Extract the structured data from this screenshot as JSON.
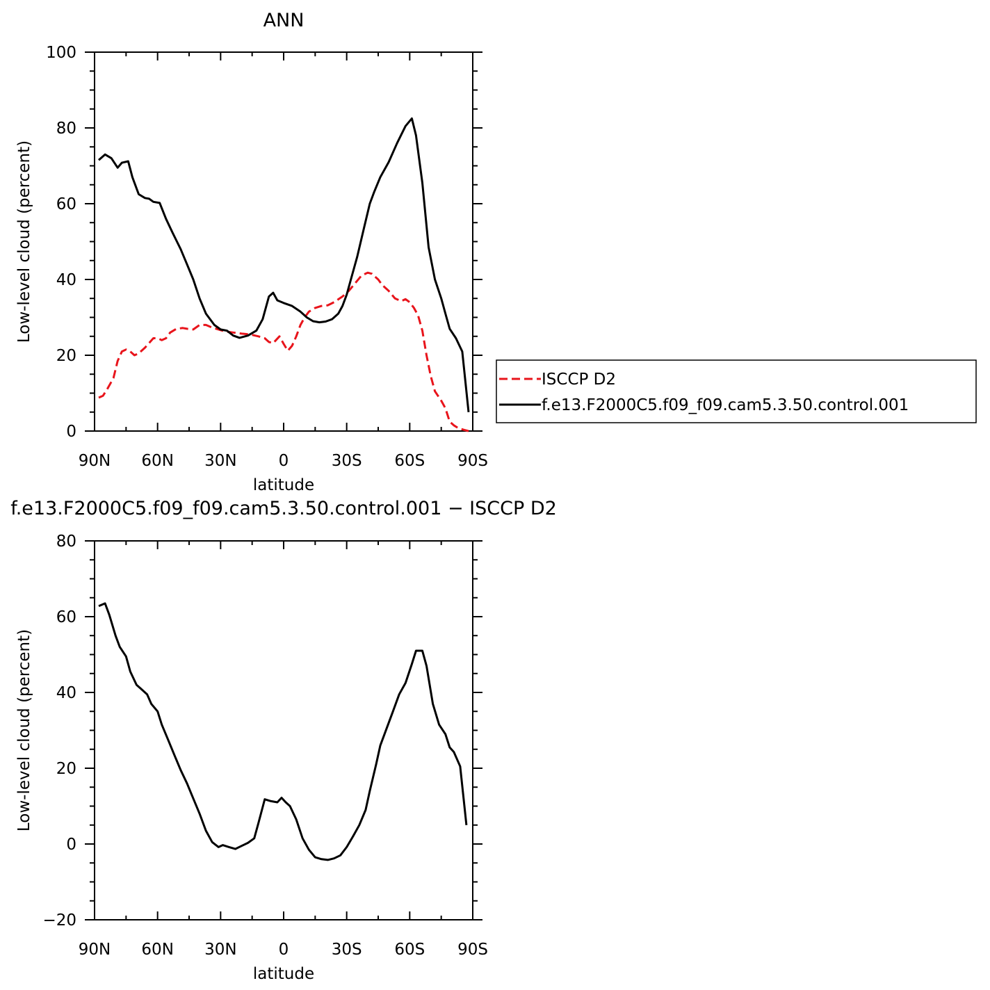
{
  "chart_data": [
    {
      "type": "line",
      "title": "ANN",
      "xlabel": "latitude",
      "ylabel": "Low-level cloud (percent)",
      "xlim": [
        90,
        -90
      ],
      "ylim": [
        0,
        100
      ],
      "x_ticks": [
        90,
        60,
        30,
        0,
        -30,
        -60,
        -90
      ],
      "x_tick_labels": [
        "90N",
        "60N",
        "30N",
        "0",
        "30S",
        "60S",
        "90S"
      ],
      "y_ticks": [
        0,
        20,
        40,
        60,
        80,
        100
      ],
      "y_tick_labels": [
        "0",
        "20",
        "40",
        "60",
        "80",
        "100"
      ],
      "grid": false,
      "legend_position": "right",
      "series": [
        {
          "name": "ISCCP D2",
          "color": "#e8141b",
          "dash": "dashed",
          "points": [
            [
              88,
              8.8
            ],
            [
              86,
              9.3
            ],
            [
              84,
              11
            ],
            [
              81,
              14
            ],
            [
              79,
              18.5
            ],
            [
              77,
              21
            ],
            [
              75,
              21.5
            ],
            [
              73,
              21
            ],
            [
              71,
              20
            ],
            [
              69,
              20.5
            ],
            [
              66,
              22
            ],
            [
              62,
              24.5
            ],
            [
              60,
              24.5
            ],
            [
              58,
              24
            ],
            [
              56,
              24.5
            ],
            [
              54,
              26
            ],
            [
              51,
              27
            ],
            [
              48,
              27.2
            ],
            [
              46,
              27
            ],
            [
              43,
              26.8
            ],
            [
              40,
              28
            ],
            [
              37,
              28
            ],
            [
              34,
              27.3
            ],
            [
              31,
              26.8
            ],
            [
              28,
              26.3
            ],
            [
              24,
              26
            ],
            [
              20,
              25.7
            ],
            [
              16,
              25.5
            ],
            [
              12,
              25
            ],
            [
              9,
              24.5
            ],
            [
              7,
              23.5
            ],
            [
              5,
              23.2
            ],
            [
              2,
              25
            ],
            [
              0,
              23
            ],
            [
              -2,
              21.2
            ],
            [
              -4,
              22.5
            ],
            [
              -6,
              25
            ],
            [
              -8,
              28
            ],
            [
              -10,
              30
            ],
            [
              -12,
              31.5
            ],
            [
              -15,
              32.5
            ],
            [
              -18,
              33
            ],
            [
              -21,
              33.2
            ],
            [
              -24,
              34
            ],
            [
              -28,
              35.5
            ],
            [
              -31,
              37
            ],
            [
              -34,
              39
            ],
            [
              -37,
              41
            ],
            [
              -40,
              41.8
            ],
            [
              -42,
              41.5
            ],
            [
              -45,
              40
            ],
            [
              -47,
              38.5
            ],
            [
              -50,
              37
            ],
            [
              -53,
              35
            ],
            [
              -56,
              34.3
            ],
            [
              -58,
              34.8
            ],
            [
              -60,
              34
            ],
            [
              -62,
              32.5
            ],
            [
              -64,
              30.5
            ],
            [
              -66,
              26.5
            ],
            [
              -68,
              20
            ],
            [
              -70,
              14.5
            ],
            [
              -72,
              10.5
            ],
            [
              -75,
              8
            ],
            [
              -77,
              6
            ],
            [
              -79,
              2.5
            ],
            [
              -81,
              1.5
            ],
            [
              -83,
              0.8
            ],
            [
              -86,
              0.3
            ],
            [
              -88,
              0
            ]
          ]
        },
        {
          "name": "f.e13.F2000C5.f09_f09.cam5.3.50.control.001",
          "color": "#000000",
          "dash": "solid",
          "points": [
            [
              88,
              71.5
            ],
            [
              85,
              73
            ],
            [
              82,
              72
            ],
            [
              79,
              69.5
            ],
            [
              77,
              70.8
            ],
            [
              74,
              71.2
            ],
            [
              72,
              67
            ],
            [
              69,
              62.5
            ],
            [
              66,
              61.5
            ],
            [
              64,
              61.3
            ],
            [
              62,
              60.5
            ],
            [
              59,
              60.2
            ],
            [
              56,
              56
            ],
            [
              53,
              52.5
            ],
            [
              49,
              48
            ],
            [
              46,
              44
            ],
            [
              43,
              40
            ],
            [
              40,
              35
            ],
            [
              37,
              31
            ],
            [
              33,
              28
            ],
            [
              30,
              26.8
            ],
            [
              27,
              26.5
            ],
            [
              24,
              25.2
            ],
            [
              21,
              24.6
            ],
            [
              17,
              25.2
            ],
            [
              13,
              26.5
            ],
            [
              10,
              29.5
            ],
            [
              7,
              35.5
            ],
            [
              5,
              36.5
            ],
            [
              3,
              34.5
            ],
            [
              0,
              33.8
            ],
            [
              -4,
              33
            ],
            [
              -8,
              31.5
            ],
            [
              -11,
              30
            ],
            [
              -14,
              29
            ],
            [
              -17,
              28.7
            ],
            [
              -20,
              28.9
            ],
            [
              -23,
              29.5
            ],
            [
              -26,
              31
            ],
            [
              -28,
              33
            ],
            [
              -30,
              36
            ],
            [
              -32,
              40
            ],
            [
              -35,
              46
            ],
            [
              -38,
              53
            ],
            [
              -41,
              60
            ],
            [
              -43,
              63
            ],
            [
              -46,
              67
            ],
            [
              -50,
              71
            ],
            [
              -54,
              76
            ],
            [
              -58,
              80.5
            ],
            [
              -61,
              82.5
            ],
            [
              -63,
              78
            ],
            [
              -66,
              65.5
            ],
            [
              -69,
              48.5
            ],
            [
              -72,
              40
            ],
            [
              -75,
              35
            ],
            [
              -77,
              31
            ],
            [
              -79,
              27
            ],
            [
              -82,
              24.5
            ],
            [
              -85,
              21
            ],
            [
              -88,
              5
            ]
          ]
        }
      ]
    },
    {
      "type": "line",
      "title": "f.e13.F2000C5.f09_f09.cam5.3.50.control.001 − ISCCP D2",
      "xlabel": "latitude",
      "ylabel": "Low-level cloud (percent)",
      "xlim": [
        90,
        -90
      ],
      "ylim": [
        -20,
        80
      ],
      "x_ticks": [
        90,
        60,
        30,
        0,
        -30,
        -60,
        -90
      ],
      "x_tick_labels": [
        "90N",
        "60N",
        "30N",
        "0",
        "30S",
        "60S",
        "90S"
      ],
      "y_ticks": [
        -20,
        0,
        20,
        40,
        60,
        80
      ],
      "y_tick_labels": [
        "−20",
        "0",
        "20",
        "40",
        "60",
        "80"
      ],
      "grid": false,
      "series": [
        {
          "color": "#000000",
          "dash": "solid",
          "points": [
            [
              88,
              62.8
            ],
            [
              85,
              63.5
            ],
            [
              83,
              60.5
            ],
            [
              80,
              55
            ],
            [
              78,
              52
            ],
            [
              75,
              49.5
            ],
            [
              73,
              45.5
            ],
            [
              70,
              42
            ],
            [
              68,
              41
            ],
            [
              65,
              39.5
            ],
            [
              63,
              37
            ],
            [
              60,
              35
            ],
            [
              58,
              31.5
            ],
            [
              55,
              27.5
            ],
            [
              52,
              23.5
            ],
            [
              49,
              19.5
            ],
            [
              46,
              16
            ],
            [
              43,
              12
            ],
            [
              40,
              8
            ],
            [
              37,
              3.5
            ],
            [
              34,
              0.5
            ],
            [
              31,
              -0.8
            ],
            [
              29,
              -0.3
            ],
            [
              26,
              -0.8
            ],
            [
              23,
              -1.3
            ],
            [
              20,
              -0.5
            ],
            [
              17,
              0.3
            ],
            [
              14,
              1.5
            ],
            [
              12,
              5.5
            ],
            [
              9,
              11.8
            ],
            [
              6,
              11.3
            ],
            [
              3,
              11
            ],
            [
              1,
              12.2
            ],
            [
              -1,
              11
            ],
            [
              -3,
              10
            ],
            [
              -6,
              6.5
            ],
            [
              -9,
              1.5
            ],
            [
              -12,
              -1.5
            ],
            [
              -15,
              -3.5
            ],
            [
              -18,
              -4
            ],
            [
              -21,
              -4.2
            ],
            [
              -24,
              -3.8
            ],
            [
              -27,
              -3
            ],
            [
              -30,
              -0.8
            ],
            [
              -33,
              2
            ],
            [
              -36,
              5
            ],
            [
              -39,
              9
            ],
            [
              -41,
              14
            ],
            [
              -44,
              21
            ],
            [
              -46,
              26
            ],
            [
              -49,
              30.5
            ],
            [
              -52,
              35
            ],
            [
              -55,
              39.5
            ],
            [
              -58,
              42.5
            ],
            [
              -61,
              47.5
            ],
            [
              -63,
              51
            ],
            [
              -66,
              51
            ],
            [
              -68,
              47
            ],
            [
              -71,
              37
            ],
            [
              -74,
              31.5
            ],
            [
              -77,
              29
            ],
            [
              -79,
              25.5
            ],
            [
              -81,
              24.3
            ],
            [
              -84,
              20.5
            ],
            [
              -87,
              5
            ]
          ]
        }
      ]
    }
  ]
}
